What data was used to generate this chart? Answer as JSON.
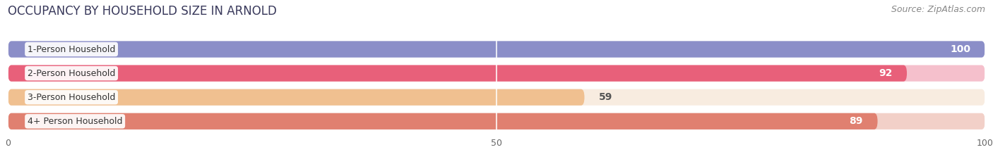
{
  "title": "OCCUPANCY BY HOUSEHOLD SIZE IN ARNOLD",
  "source": "Source: ZipAtlas.com",
  "categories": [
    "1-Person Household",
    "2-Person Household",
    "3-Person Household",
    "4+ Person Household"
  ],
  "values": [
    100,
    92,
    59,
    89
  ],
  "bar_colors": [
    "#8b8ec8",
    "#e8607a",
    "#f0c090",
    "#e08070"
  ],
  "bar_bg_colors": [
    "#dcdcee",
    "#f5c0cc",
    "#f8ece0",
    "#f2d0c8"
  ],
  "xlim": [
    0,
    100
  ],
  "xticks": [
    0,
    50,
    100
  ],
  "title_fontsize": 12,
  "source_fontsize": 9,
  "bar_label_fontsize": 10,
  "category_fontsize": 9,
  "background_color": "#ffffff",
  "white_gap_color": "#ffffff"
}
